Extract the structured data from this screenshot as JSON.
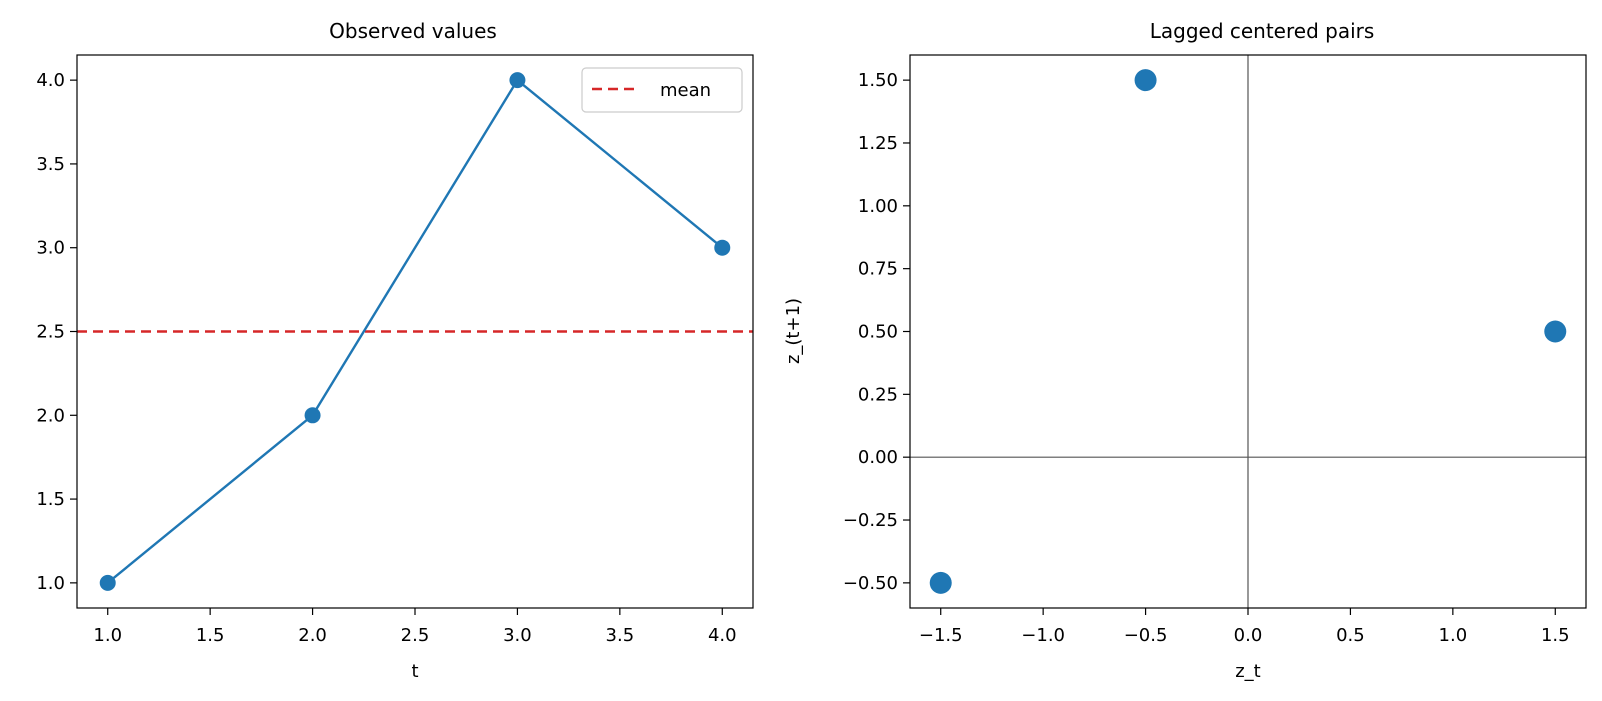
{
  "chart_data": [
    {
      "type": "line",
      "title": "Observed values",
      "xlabel": "t",
      "ylabel": "",
      "xlim": [
        0.85,
        4.15
      ],
      "ylim": [
        0.85,
        4.15
      ],
      "xticks": [
        1.0,
        1.5,
        2.0,
        2.5,
        3.0,
        3.5,
        4.0
      ],
      "xtick_labels": [
        "1.0",
        "1.5",
        "2.0",
        "2.5",
        "3.0",
        "3.5",
        "4.0"
      ],
      "yticks": [
        1.0,
        1.5,
        2.0,
        2.5,
        3.0,
        3.5,
        4.0
      ],
      "ytick_labels": [
        "1.0",
        "1.5",
        "2.0",
        "2.5",
        "3.0",
        "3.5",
        "4.0"
      ],
      "grid": false,
      "legend": {
        "position": "upper right",
        "entries": [
          "mean"
        ]
      },
      "series": [
        {
          "x": [
            1,
            2,
            3,
            4
          ],
          "y": [
            1,
            2,
            4,
            3
          ],
          "color": "#1f77b4",
          "marker": "circle"
        }
      ],
      "reference_lines": [
        {
          "name": "mean",
          "orientation": "horizontal",
          "y": 2.5,
          "color": "#d62728",
          "style": "dashed"
        }
      ]
    },
    {
      "type": "scatter",
      "title": "Lagged centered pairs",
      "xlabel": "z_t",
      "ylabel": "z_(t+1)",
      "xlim": [
        -1.65,
        1.65
      ],
      "ylim": [
        -0.6,
        1.6
      ],
      "xticks": [
        -1.5,
        -1.0,
        -0.5,
        0.0,
        0.5,
        1.0,
        1.5
      ],
      "xtick_labels": [
        "−1.5",
        "−1.0",
        "−0.5",
        "0.0",
        "0.5",
        "1.0",
        "1.5"
      ],
      "yticks": [
        -0.5,
        -0.25,
        0.0,
        0.25,
        0.5,
        0.75,
        1.0,
        1.25,
        1.5
      ],
      "ytick_labels": [
        "−0.50",
        "−0.25",
        "0.00",
        "0.25",
        "0.50",
        "0.75",
        "1.00",
        "1.25",
        "1.50"
      ],
      "grid": false,
      "series": [
        {
          "x": [
            -1.5,
            -0.5,
            1.5
          ],
          "y": [
            -0.5,
            1.5,
            0.5
          ],
          "color": "#1f77b4",
          "marker": "circle"
        }
      ],
      "reference_lines": [
        {
          "orientation": "horizontal",
          "y": 0.0,
          "color": "#555555",
          "style": "solid"
        },
        {
          "orientation": "vertical",
          "x": 0.0,
          "color": "#555555",
          "style": "solid"
        }
      ]
    }
  ]
}
